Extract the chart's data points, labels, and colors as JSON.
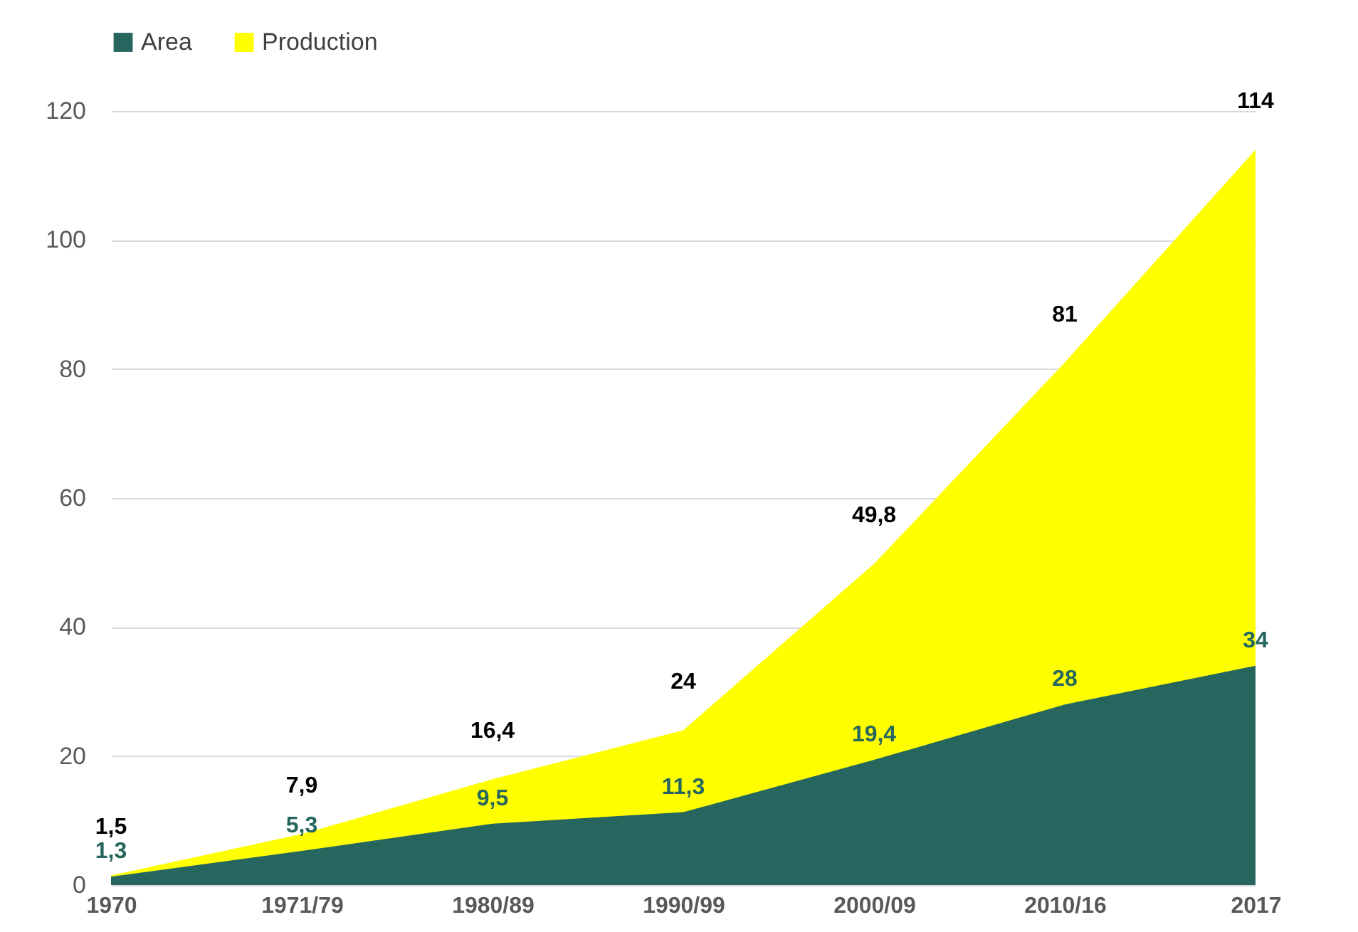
{
  "chart_data": {
    "type": "area",
    "categories": [
      "1970",
      "1971/79",
      "1980/89",
      "1990/99",
      "2000/09",
      "2010/16",
      "2017"
    ],
    "series": [
      {
        "name": "Area",
        "color": "#26665e",
        "values": [
          1.3,
          5.3,
          9.5,
          11.3,
          19.4,
          28,
          34
        ],
        "value_labels": [
          "1,3",
          "5,3",
          "9,5",
          "11,3",
          "19,4",
          "28",
          "34"
        ]
      },
      {
        "name": "Production",
        "color": "#ffff00",
        "values": [
          1.5,
          7.9,
          16.4,
          24,
          49.8,
          81,
          114
        ],
        "value_labels": [
          "1,5",
          "7,9",
          "16,4",
          "24",
          "49,8",
          "81",
          "114"
        ]
      }
    ],
    "ylim": [
      0,
      120
    ],
    "yticks": [
      0,
      20,
      40,
      60,
      80,
      100,
      120
    ],
    "grid": "y",
    "legend": "top left"
  }
}
